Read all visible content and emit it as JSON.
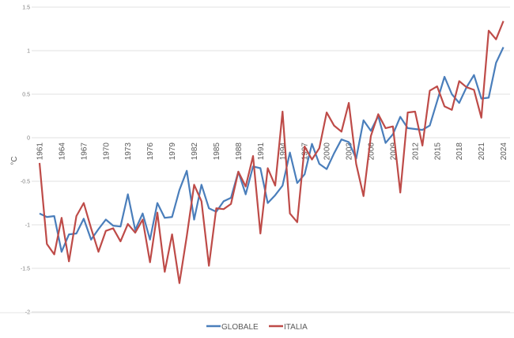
{
  "chart_data": {
    "type": "line",
    "title": "",
    "xlabel": "",
    "ylabel": "°C",
    "ylim": [
      -2,
      1.5
    ],
    "yticks": [
      1.5,
      1,
      0.5,
      0,
      -0.5,
      -1,
      -1.5,
      -2
    ],
    "ytick_labels": [
      "1.5",
      "1",
      "0.5",
      "0",
      "-0.5",
      "-1",
      "-1.5",
      "-2"
    ],
    "grid": true,
    "legend_position": "bottom",
    "x": [
      1961,
      1962,
      1963,
      1964,
      1965,
      1966,
      1967,
      1968,
      1969,
      1970,
      1971,
      1972,
      1973,
      1974,
      1975,
      1976,
      1977,
      1978,
      1979,
      1980,
      1981,
      1982,
      1983,
      1984,
      1985,
      1986,
      1987,
      1988,
      1989,
      1990,
      1991,
      1992,
      1993,
      1994,
      1995,
      1996,
      1997,
      1998,
      1999,
      2000,
      2001,
      2002,
      2003,
      2004,
      2005,
      2006,
      2007,
      2008,
      2009,
      2010,
      2011,
      2012,
      2013,
      2014,
      2015,
      2016,
      2017,
      2018,
      2019,
      2020,
      2021,
      2022,
      2023,
      2024
    ],
    "xtick_labels": [
      "1961",
      "1964",
      "1967",
      "1970",
      "1973",
      "1976",
      "1979",
      "1982",
      "1985",
      "1988",
      "1991",
      "1994",
      "1997",
      "2000",
      "2003",
      "2006",
      "2009",
      "2012",
      "2015",
      "2018",
      "2021",
      "2024"
    ],
    "series": [
      {
        "name": "GLOBALE",
        "color": "#4a7ebb",
        "values": [
          -0.87,
          -0.91,
          -0.9,
          -1.31,
          -1.11,
          -1.1,
          -0.93,
          -1.17,
          -1.05,
          -0.94,
          -1.01,
          -1.02,
          -0.65,
          -1.06,
          -0.87,
          -1.17,
          -0.75,
          -0.92,
          -0.91,
          -0.6,
          -0.38,
          -0.94,
          -0.54,
          -0.81,
          -0.85,
          -0.73,
          -0.69,
          -0.39,
          -0.65,
          -0.33,
          -0.35,
          -0.75,
          -0.66,
          -0.55,
          -0.17,
          -0.52,
          -0.42,
          -0.07,
          -0.3,
          -0.36,
          -0.18,
          -0.02,
          -0.05,
          -0.24,
          0.2,
          0.08,
          0.25,
          -0.06,
          0.04,
          0.24,
          0.11,
          0.1,
          0.09,
          0.14,
          0.42,
          0.7,
          0.5,
          0.4,
          0.58,
          0.72,
          0.45,
          0.46,
          0.86,
          1.04
        ]
      },
      {
        "name": "ITALIA",
        "color": "#be4b48",
        "values": [
          -0.29,
          -1.22,
          -1.34,
          -0.92,
          -1.42,
          -0.9,
          -0.75,
          -1.04,
          -1.31,
          -1.07,
          -1.04,
          -1.19,
          -0.99,
          -1.09,
          -0.94,
          -1.43,
          -0.86,
          -1.54,
          -1.11,
          -1.67,
          -1.13,
          -0.54,
          -0.73,
          -1.47,
          -0.81,
          -0.82,
          -0.76,
          -0.39,
          -0.56,
          -0.21,
          -1.1,
          -0.35,
          -0.55,
          0.3,
          -0.87,
          -0.97,
          -0.1,
          -0.25,
          -0.12,
          0.29,
          0.14,
          0.07,
          0.4,
          -0.3,
          -0.67,
          0.02,
          0.27,
          0.11,
          0.13,
          -0.63,
          0.29,
          0.3,
          -0.09,
          0.54,
          0.59,
          0.36,
          0.32,
          0.65,
          0.58,
          0.55,
          0.23,
          1.23,
          1.13,
          1.34
        ]
      }
    ]
  },
  "colors": {
    "grid": "#d9d9d9",
    "text": "#595959"
  }
}
